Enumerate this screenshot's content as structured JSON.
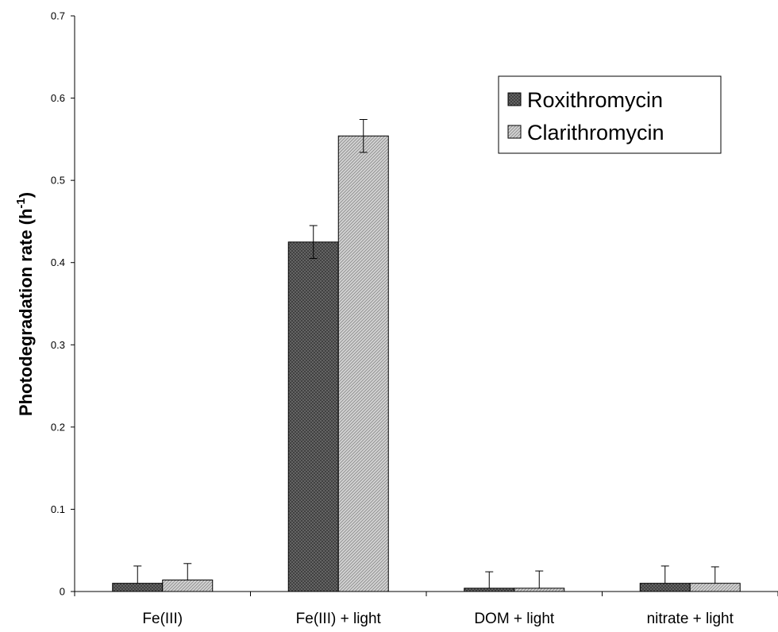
{
  "chart_data": {
    "type": "bar",
    "categories": [
      "Fe(III)",
      "Fe(III) + light",
      "DOM + light",
      "nitrate + light"
    ],
    "series": [
      {
        "name": "Roxithromycin",
        "values": [
          0.01,
          0.425,
          0.004,
          0.01
        ],
        "error": [
          0.021,
          0.02,
          0.02,
          0.021
        ],
        "color": "#5a5a5a",
        "pattern": "dark-crosshatch"
      },
      {
        "name": "Clarithromycin",
        "values": [
          0.014,
          0.554,
          0.004,
          0.01
        ],
        "error": [
          0.02,
          0.02,
          0.021,
          0.02
        ],
        "color": "#bdbdbd",
        "pattern": "light-diagonal-hatch"
      }
    ],
    "xlabel": "",
    "ylabel": {
      "text": "Photodegradation rate (h",
      "superscript": "-1",
      "suffix": ")"
    },
    "ylim": [
      0,
      0.7
    ],
    "yticks": [
      "0",
      "0.1",
      "0.2",
      "0.3",
      "0.4",
      "0.5",
      "0.6",
      "0.7"
    ],
    "grid": false,
    "legend": "top-right"
  }
}
